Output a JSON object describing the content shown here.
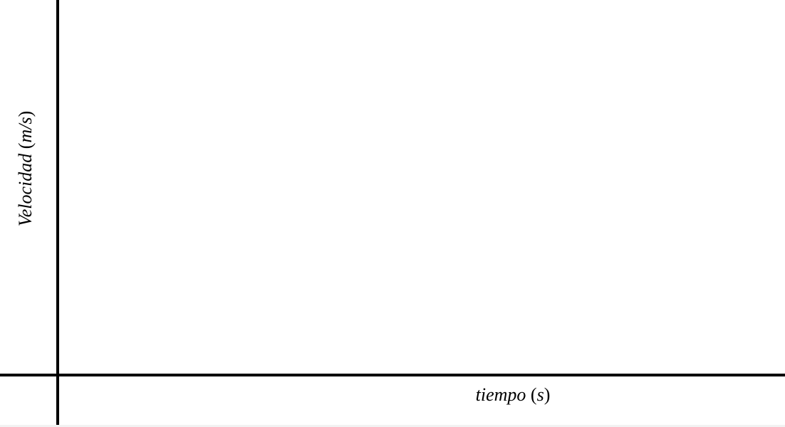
{
  "chart_data": {
    "type": "line",
    "title": "",
    "xlabel": {
      "name": "tiempo",
      "unit_open": "(",
      "unit": "s",
      "unit_close": ")"
    },
    "ylabel": {
      "name": "Velocidad",
      "unit_open": "(",
      "unit": "m/s",
      "unit_close": ")"
    },
    "series": [],
    "grid": false,
    "legend": "none"
  }
}
